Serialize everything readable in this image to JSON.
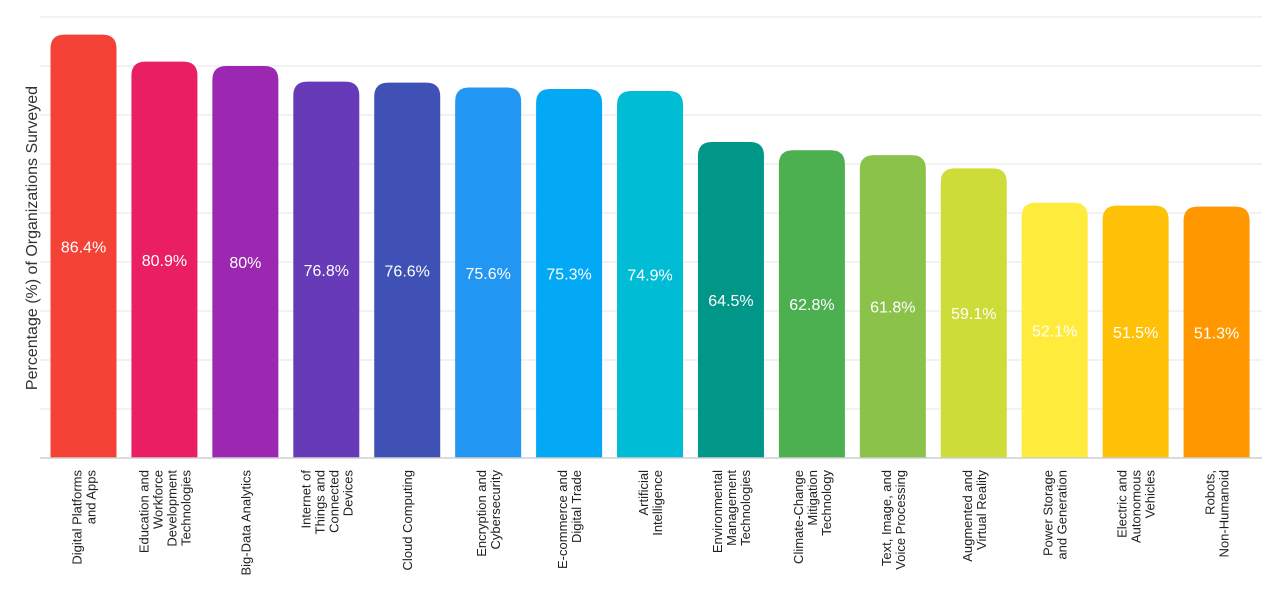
{
  "chart_data": {
    "type": "bar",
    "title": "",
    "xlabel": "",
    "ylabel": "Percentage (%) of Organizations Surveyed",
    "ylim": [
      0,
      90
    ],
    "grid": true,
    "categories": [
      [
        "Digital Platforms",
        "and Apps"
      ],
      [
        "Education and",
        "Workforce",
        "Development",
        "Technologies"
      ],
      [
        "Big-Data Analytics"
      ],
      [
        "Internet of",
        "Things and",
        "Connected",
        "Devices"
      ],
      [
        "Cloud Computing"
      ],
      [
        "Encryption and",
        "Cybersecurity"
      ],
      [
        "E-commerce and",
        "Digital Trade"
      ],
      [
        "Artificial",
        "Intelligence"
      ],
      [
        "Environmental",
        "Management",
        "Technologies"
      ],
      [
        "Climate-Change",
        "Mitigation",
        "Technology"
      ],
      [
        "Text, Image, and",
        "Voice Processing"
      ],
      [
        "Augmented and",
        "Virtual Reality"
      ],
      [
        "Power Storage",
        "and Generation"
      ],
      [
        "Electric and",
        "Autonomous",
        "Vehicles"
      ],
      [
        "Robots,",
        "Non-Humanoid"
      ]
    ],
    "values": [
      86.4,
      80.9,
      80,
      76.8,
      76.6,
      75.6,
      75.3,
      74.9,
      64.5,
      62.8,
      61.8,
      59.1,
      52.1,
      51.5,
      51.3
    ],
    "value_labels": [
      "86.4%",
      "80.9%",
      "80%",
      "76.8%",
      "76.6%",
      "75.6%",
      "75.3%",
      "74.9%",
      "64.5%",
      "62.8%",
      "61.8%",
      "59.1%",
      "52.1%",
      "51.5%",
      "51.3%"
    ],
    "colors": [
      "#f44336",
      "#e91e63",
      "#9c27b0",
      "#673ab7",
      "#3f51b5",
      "#2196f3",
      "#03a9f4",
      "#00bcd4",
      "#009688",
      "#4caf50",
      "#8bc34a",
      "#cddc39",
      "#ffeb3b",
      "#ffc107",
      "#ff9800"
    ]
  }
}
